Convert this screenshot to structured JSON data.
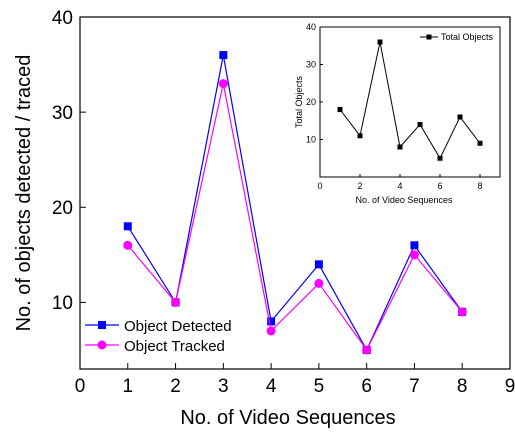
{
  "chart_data": [
    {
      "type": "line",
      "xlabel": "No. of Video Sequences",
      "ylabel": "No. of objects detected / traced",
      "xlim": [
        0,
        9
      ],
      "ylim": [
        3,
        40
      ],
      "x_ticks": [
        "0",
        "1",
        "2",
        "3",
        "4",
        "5",
        "6",
        "7",
        "8",
        "9"
      ],
      "y_ticks": [
        "10",
        "20",
        "30",
        "40"
      ],
      "grid": false,
      "legend_position": "bottom-left",
      "x": [
        1,
        2,
        3,
        4,
        5,
        6,
        7,
        8
      ],
      "series": [
        {
          "name": "Object Detected",
          "marker": "square",
          "color": "#0000ff",
          "values": [
            18,
            10,
            36,
            8,
            14,
            5,
            16,
            9
          ]
        },
        {
          "name": "Object Tracked",
          "marker": "circle",
          "color": "#ff00ff",
          "values": [
            16,
            10,
            33,
            7,
            12,
            5,
            15,
            9
          ]
        }
      ]
    },
    {
      "type": "line",
      "inset": true,
      "xlabel": "No. of Video Sequences",
      "ylabel": "Total Objects",
      "xlim": [
        0,
        9
      ],
      "ylim": [
        0,
        40
      ],
      "x_ticks": [
        "0",
        "2",
        "4",
        "6",
        "8"
      ],
      "y_ticks": [
        "10",
        "20",
        "30",
        "40"
      ],
      "grid": false,
      "legend_position": "top-right",
      "x": [
        1,
        2,
        3,
        4,
        5,
        6,
        7,
        8
      ],
      "series": [
        {
          "name": "Total Objects",
          "marker": "square",
          "color": "#000000",
          "values": [
            18,
            11,
            36,
            8,
            14,
            5,
            16,
            9
          ]
        }
      ]
    }
  ]
}
